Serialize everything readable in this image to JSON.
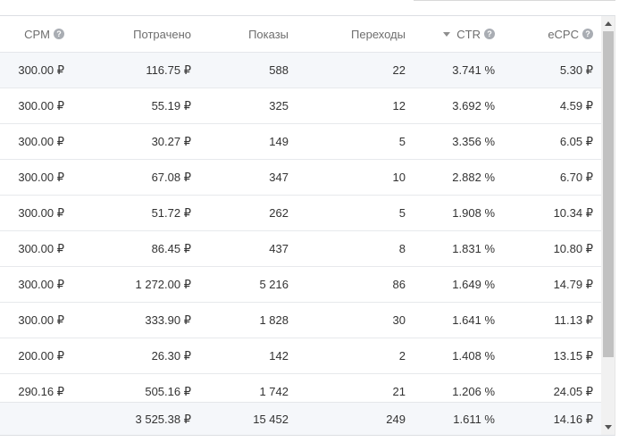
{
  "table": {
    "headers": {
      "cpm": "CPM",
      "spent": "Потрачено",
      "impressions": "Показы",
      "clicks": "Переходы",
      "ctr": "CTR",
      "ecpc": "eCPC"
    },
    "rows": [
      {
        "cpm": "300.00 ₽",
        "spent": "116.75 ₽",
        "impressions": "588",
        "clicks": "22",
        "ctr": "3.741 %",
        "ecpc": "5.30 ₽"
      },
      {
        "cpm": "300.00 ₽",
        "spent": "55.19 ₽",
        "impressions": "325",
        "clicks": "12",
        "ctr": "3.692 %",
        "ecpc": "4.59 ₽"
      },
      {
        "cpm": "300.00 ₽",
        "spent": "30.27 ₽",
        "impressions": "149",
        "clicks": "5",
        "ctr": "3.356 %",
        "ecpc": "6.05 ₽"
      },
      {
        "cpm": "300.00 ₽",
        "spent": "67.08 ₽",
        "impressions": "347",
        "clicks": "10",
        "ctr": "2.882 %",
        "ecpc": "6.70 ₽"
      },
      {
        "cpm": "300.00 ₽",
        "spent": "51.72 ₽",
        "impressions": "262",
        "clicks": "5",
        "ctr": "1.908 %",
        "ecpc": "10.34 ₽"
      },
      {
        "cpm": "300.00 ₽",
        "spent": "86.45 ₽",
        "impressions": "437",
        "clicks": "8",
        "ctr": "1.831 %",
        "ecpc": "10.80 ₽"
      },
      {
        "cpm": "300.00 ₽",
        "spent": "1 272.00 ₽",
        "impressions": "5 216",
        "clicks": "86",
        "ctr": "1.649 %",
        "ecpc": "14.79 ₽"
      },
      {
        "cpm": "300.00 ₽",
        "spent": "333.90 ₽",
        "impressions": "1 828",
        "clicks": "30",
        "ctr": "1.641 %",
        "ecpc": "11.13 ₽"
      },
      {
        "cpm": "200.00 ₽",
        "spent": "26.30 ₽",
        "impressions": "142",
        "clicks": "2",
        "ctr": "1.408 %",
        "ecpc": "13.15 ₽"
      },
      {
        "cpm": "290.16 ₽",
        "spent": "505.16 ₽",
        "impressions": "1 742",
        "clicks": "21",
        "ctr": "1.206 %",
        "ecpc": "24.05 ₽"
      }
    ],
    "totals": {
      "spent": "3 525.38 ₽",
      "impressions": "15 452",
      "clicks": "249",
      "ctr": "1.611 %",
      "ecpc": "14.16 ₽"
    }
  },
  "icons": {
    "help": "question-circle-icon",
    "sort": "sort-descending-icon"
  },
  "colors": {
    "row_hover": "#f5f7fa",
    "header_text": "#6e6e6e",
    "scroll_thumb": "#c1c1c1"
  }
}
